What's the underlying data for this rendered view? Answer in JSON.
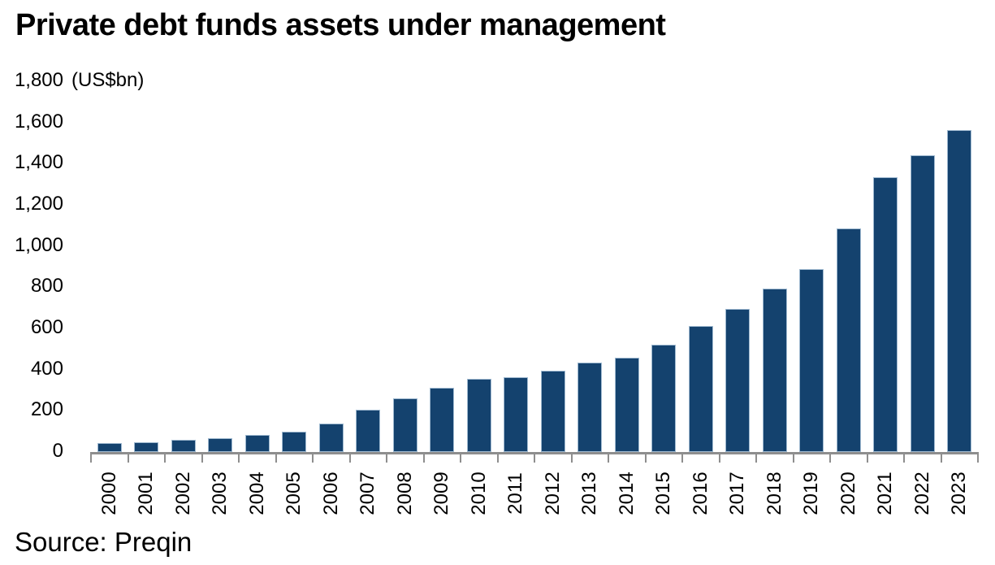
{
  "chart_data": {
    "type": "bar",
    "title": "Private debt funds assets under management",
    "unit_label": "(US$bn)",
    "source": "Source: Preqin",
    "categories": [
      "2000",
      "2001",
      "2002",
      "2003",
      "2004",
      "2005",
      "2006",
      "2007",
      "2008",
      "2009",
      "2010",
      "2011",
      "2012",
      "2013",
      "2014",
      "2015",
      "2016",
      "2017",
      "2018",
      "2019",
      "2020",
      "2021",
      "2022",
      "2023"
    ],
    "values": [
      42,
      48,
      60,
      67,
      81,
      100,
      140,
      205,
      260,
      310,
      355,
      365,
      395,
      435,
      458,
      523,
      610,
      695,
      795,
      890,
      1085,
      1335,
      1440,
      1565
    ],
    "ylim": [
      0,
      1800
    ],
    "ytick_step": 200,
    "grid": false,
    "legend": "none",
    "xlabel_rotation_degrees": 90,
    "colors": {
      "bar_fill": "#14426E",
      "bar_border": "#9FB9D0",
      "axis": "#8E8E8E",
      "text": "#000000"
    }
  }
}
